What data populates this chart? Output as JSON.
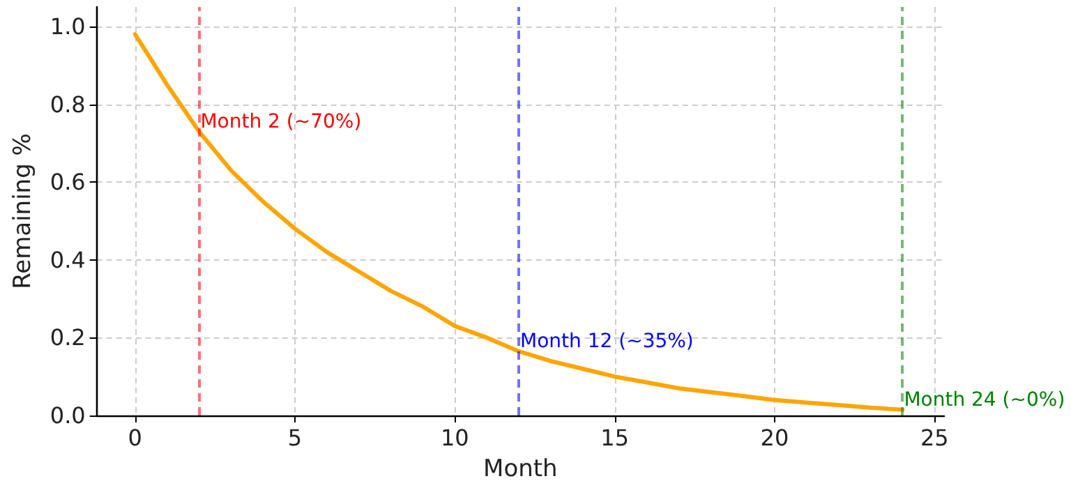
{
  "chart_data": {
    "type": "line",
    "xlabel": "Month",
    "ylabel": "Remaining %",
    "x": [
      0,
      1,
      2,
      3,
      4,
      5,
      6,
      7,
      8,
      9,
      10,
      11,
      12,
      13,
      14,
      15,
      16,
      17,
      18,
      19,
      20,
      21,
      22,
      23,
      24
    ],
    "series": [
      {
        "color": "#ffa500",
        "values": [
          0.98,
          0.85,
          0.73,
          0.63,
          0.55,
          0.48,
          0.42,
          0.37,
          0.32,
          0.28,
          0.23,
          0.2,
          0.165,
          0.14,
          0.12,
          0.1,
          0.085,
          0.07,
          0.06,
          0.05,
          0.04,
          0.033,
          0.027,
          0.02,
          0.015
        ]
      }
    ],
    "xlim": [
      -1.2,
      25.3
    ],
    "xticks": [
      0,
      5,
      10,
      15,
      20,
      25
    ],
    "ylim": [
      0,
      1.05
    ],
    "yticks": [
      {
        "value": 0,
        "label": "0.0"
      },
      {
        "value": 0.2,
        "label": "0.2"
      },
      {
        "value": 0.4,
        "label": "0.4"
      },
      {
        "value": 0.6,
        "label": "0.6"
      },
      {
        "value": 0.8,
        "label": "0.8"
      },
      {
        "value": 1,
        "label": "1.0"
      }
    ],
    "ref_lines": [
      {
        "axis": "x",
        "value": 2,
        "label": "Month 2 (~70%)",
        "color": "#ff0000",
        "line_style": "dashed"
      },
      {
        "axis": "x",
        "value": 12,
        "label": "Month 12 (~35%)",
        "color": "#0000ff",
        "line_style": "dashed"
      },
      {
        "axis": "x",
        "value": 24,
        "label": "Month 24 (~0%)",
        "color": "#008000",
        "line_style": "dashed"
      }
    ],
    "grid": true,
    "marker": "none",
    "line_style": "solid"
  }
}
